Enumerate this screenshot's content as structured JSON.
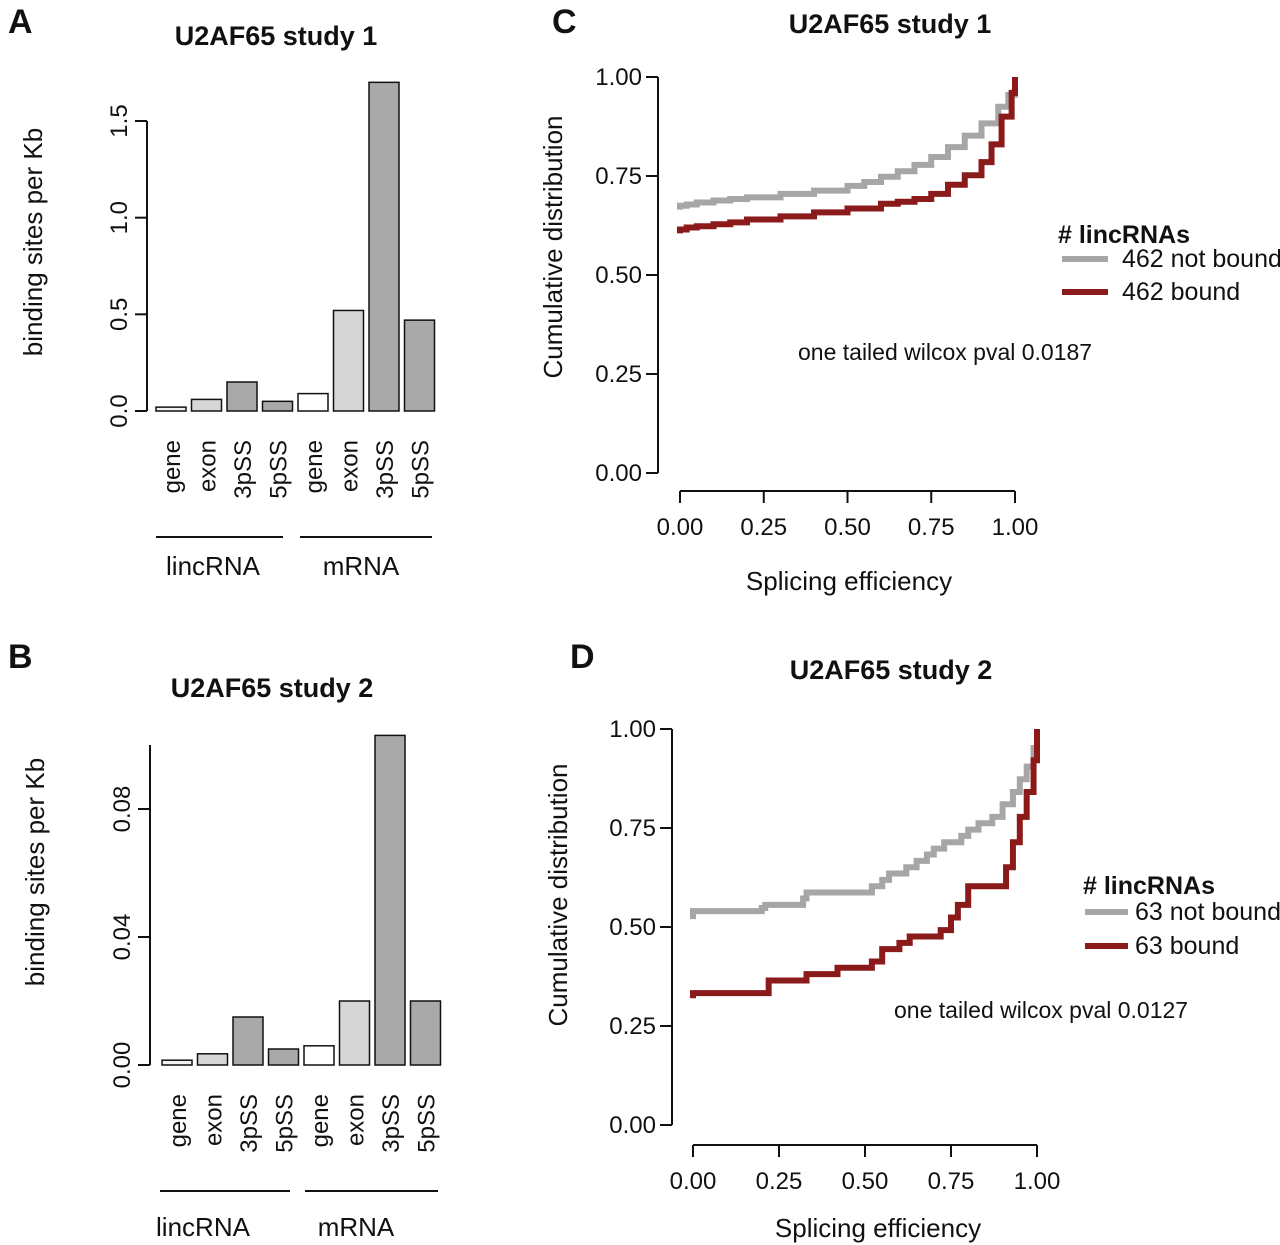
{
  "chart_data": [
    {
      "panel": "A",
      "type": "bar",
      "title": "U2AF65 study 1",
      "ylabel": "binding sites per Kb",
      "ylim": [
        0,
        1.5
      ],
      "yticks": [
        "0.0",
        "0.5",
        "1.0",
        "1.5"
      ],
      "categories": [
        "gene",
        "exon",
        "3pSS",
        "5pSS",
        "gene",
        "exon",
        "3pSS",
        "5pSS"
      ],
      "values": [
        0.02,
        0.06,
        0.15,
        0.05,
        0.09,
        0.52,
        1.7,
        0.47
      ],
      "bar_colors": [
        "#f2f2f2",
        "#d6d6d6",
        "#a9a9a9",
        "#a9a9a9",
        "#ffffff",
        "#d6d6d6",
        "#a9a9a9",
        "#a9a9a9"
      ],
      "groups": [
        "lincRNA",
        "mRNA"
      ]
    },
    {
      "panel": "B",
      "type": "bar",
      "title": "U2AF65 study 2",
      "ylabel": "binding sites per Kb",
      "ylim": [
        0,
        0.1
      ],
      "yticks": [
        "0.00",
        "0.04",
        "0.08"
      ],
      "categories": [
        "gene",
        "exon",
        "3pSS",
        "5pSS",
        "gene",
        "exon",
        "3pSS",
        "5pSS"
      ],
      "values": [
        0.0015,
        0.0035,
        0.015,
        0.005,
        0.006,
        0.02,
        0.103,
        0.02
      ],
      "bar_colors": [
        "#f2f2f2",
        "#d6d6d6",
        "#a9a9a9",
        "#a9a9a9",
        "#ffffff",
        "#d6d6d6",
        "#a9a9a9",
        "#a9a9a9"
      ],
      "groups": [
        "lincRNA",
        "mRNA"
      ]
    },
    {
      "panel": "C",
      "type": "line",
      "title": "U2AF65 study 1",
      "xlabel": "Splicing efficiency",
      "ylabel": "Cumulative distribution",
      "xlim": [
        0,
        1
      ],
      "ylim": [
        0,
        1
      ],
      "xticks": [
        "0.00",
        "0.25",
        "0.50",
        "0.75",
        "1.00"
      ],
      "yticks": [
        "0.00",
        "0.25",
        "0.50",
        "0.75",
        "1.00"
      ],
      "legend_title": "# lincRNAs",
      "annotation": "one tailed wilcox pval 0.0187",
      "series": [
        {
          "name": "462 not bound",
          "color": "#a6a6a6",
          "points": [
            [
              0,
              0.665
            ],
            [
              0.0,
              0.675
            ],
            [
              0.02,
              0.678
            ],
            [
              0.05,
              0.683
            ],
            [
              0.1,
              0.688
            ],
            [
              0.15,
              0.692
            ],
            [
              0.2,
              0.696
            ],
            [
              0.3,
              0.705
            ],
            [
              0.4,
              0.713
            ],
            [
              0.5,
              0.725
            ],
            [
              0.55,
              0.735
            ],
            [
              0.6,
              0.748
            ],
            [
              0.65,
              0.762
            ],
            [
              0.7,
              0.778
            ],
            [
              0.75,
              0.798
            ],
            [
              0.8,
              0.823
            ],
            [
              0.85,
              0.852
            ],
            [
              0.9,
              0.883
            ],
            [
              0.95,
              0.925
            ],
            [
              0.98,
              0.955
            ],
            [
              1.0,
              1.0
            ]
          ]
        },
        {
          "name": "462 bound",
          "color": "#8b1a1a",
          "points": [
            [
              0,
              0.605
            ],
            [
              0.0,
              0.615
            ],
            [
              0.02,
              0.62
            ],
            [
              0.05,
              0.623
            ],
            [
              0.1,
              0.628
            ],
            [
              0.15,
              0.633
            ],
            [
              0.2,
              0.64
            ],
            [
              0.3,
              0.648
            ],
            [
              0.4,
              0.658
            ],
            [
              0.5,
              0.668
            ],
            [
              0.6,
              0.68
            ],
            [
              0.65,
              0.685
            ],
            [
              0.7,
              0.692
            ],
            [
              0.75,
              0.705
            ],
            [
              0.8,
              0.728
            ],
            [
              0.85,
              0.752
            ],
            [
              0.9,
              0.785
            ],
            [
              0.93,
              0.83
            ],
            [
              0.96,
              0.9
            ],
            [
              0.99,
              0.96
            ],
            [
              1.0,
              1.0
            ]
          ]
        }
      ]
    },
    {
      "panel": "D",
      "type": "line",
      "title": "U2AF65 study 2",
      "xlabel": "Splicing efficiency",
      "ylabel": "Cumulative distribution",
      "xlim": [
        0,
        1
      ],
      "ylim": [
        0,
        1
      ],
      "xticks": [
        "0.00",
        "0.25",
        "0.50",
        "0.75",
        "1.00"
      ],
      "yticks": [
        "0.00",
        "0.25",
        "0.50",
        "0.75",
        "1.00"
      ],
      "legend_title": "# lincRNAs",
      "annotation": "one tailed wilcox pval 0.0127",
      "series": [
        {
          "name": "63 not bound",
          "color": "#a6a6a6",
          "points": [
            [
              0,
              0.52
            ],
            [
              0.0,
              0.54
            ],
            [
              0.1,
              0.54
            ],
            [
              0.2,
              0.548
            ],
            [
              0.21,
              0.556
            ],
            [
              0.3,
              0.556
            ],
            [
              0.32,
              0.572
            ],
            [
              0.33,
              0.587
            ],
            [
              0.5,
              0.587
            ],
            [
              0.52,
              0.603
            ],
            [
              0.55,
              0.619
            ],
            [
              0.57,
              0.635
            ],
            [
              0.62,
              0.651
            ],
            [
              0.65,
              0.667
            ],
            [
              0.68,
              0.683
            ],
            [
              0.7,
              0.698
            ],
            [
              0.73,
              0.714
            ],
            [
              0.78,
              0.73
            ],
            [
              0.8,
              0.746
            ],
            [
              0.83,
              0.762
            ],
            [
              0.87,
              0.778
            ],
            [
              0.9,
              0.81
            ],
            [
              0.93,
              0.841
            ],
            [
              0.95,
              0.873
            ],
            [
              0.97,
              0.905
            ],
            [
              0.99,
              0.952
            ],
            [
              1.0,
              1.0
            ]
          ]
        },
        {
          "name": "63 bound",
          "color": "#8b1a1a",
          "points": [
            [
              0,
              0.32
            ],
            [
              0.0,
              0.333
            ],
            [
              0.2,
              0.333
            ],
            [
              0.22,
              0.365
            ],
            [
              0.32,
              0.365
            ],
            [
              0.33,
              0.381
            ],
            [
              0.4,
              0.381
            ],
            [
              0.42,
              0.397
            ],
            [
              0.5,
              0.397
            ],
            [
              0.52,
              0.413
            ],
            [
              0.55,
              0.444
            ],
            [
              0.6,
              0.46
            ],
            [
              0.63,
              0.476
            ],
            [
              0.7,
              0.476
            ],
            [
              0.72,
              0.492
            ],
            [
              0.75,
              0.524
            ],
            [
              0.77,
              0.556
            ],
            [
              0.8,
              0.603
            ],
            [
              0.9,
              0.603
            ],
            [
              0.91,
              0.651
            ],
            [
              0.93,
              0.714
            ],
            [
              0.95,
              0.778
            ],
            [
              0.97,
              0.841
            ],
            [
              0.99,
              0.921
            ],
            [
              1.0,
              1.0
            ]
          ]
        }
      ]
    }
  ]
}
